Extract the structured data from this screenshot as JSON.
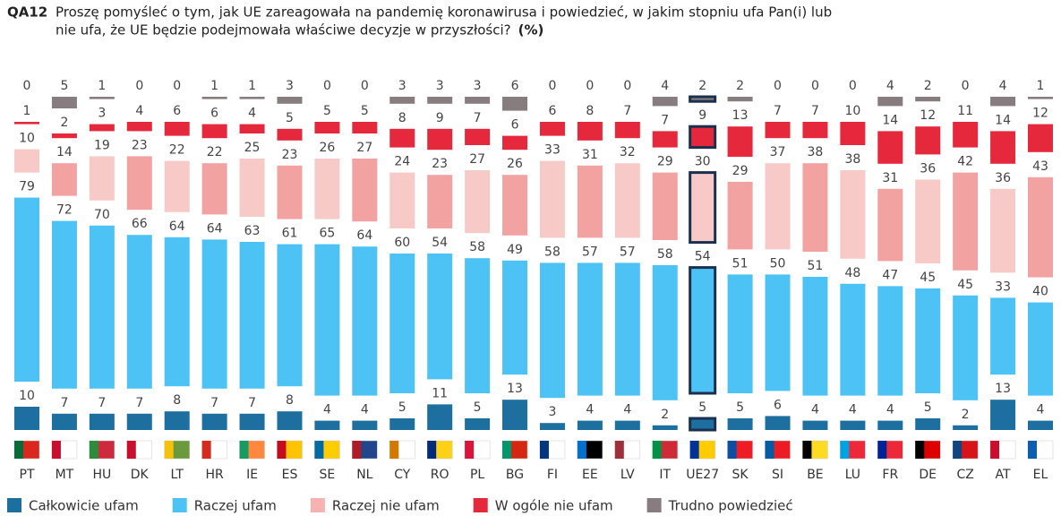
{
  "chart_data": {
    "type": "stacked_bar_gapped",
    "code": "QA12",
    "title": [
      "Proszę pomyśleć o tym, jak UE zareagowała na pandemię koronawirusa i powiedzieć, w jakim stopniu ufa Pan(i) lub",
      "nie ufa, że UE będzie podejmowała właściwe decyzje w przyszłości?"
    ],
    "unit": "(%)",
    "highlight": "UE27",
    "categories": [
      "PT",
      "MT",
      "HU",
      "DK",
      "LT",
      "HR",
      "IE",
      "ES",
      "SE",
      "NL",
      "CY",
      "RO",
      "PL",
      "BG",
      "FI",
      "EE",
      "LV",
      "IT",
      "UE27",
      "SK",
      "SI",
      "BE",
      "LU",
      "FR",
      "DE",
      "CZ",
      "AT",
      "EL"
    ],
    "series": [
      {
        "name": "Całkowicie ufam",
        "color": "#1c6f9f",
        "values": [
          10,
          7,
          7,
          7,
          8,
          7,
          7,
          8,
          4,
          4,
          5,
          11,
          5,
          13,
          3,
          4,
          4,
          2,
          5,
          5,
          6,
          4,
          4,
          4,
          5,
          2,
          13,
          4
        ]
      },
      {
        "name": "Raczej ufam",
        "color": "#4dc3f5",
        "values": [
          79,
          72,
          70,
          66,
          64,
          64,
          63,
          61,
          65,
          64,
          60,
          54,
          58,
          49,
          58,
          57,
          57,
          58,
          54,
          51,
          50,
          51,
          48,
          47,
          45,
          45,
          33,
          40
        ]
      },
      {
        "name": "Raczej nie ufam",
        "color": "#f5b3b1",
        "values": [
          10,
          14,
          19,
          23,
          22,
          22,
          25,
          23,
          26,
          27,
          24,
          23,
          27,
          26,
          33,
          31,
          32,
          29,
          30,
          29,
          37,
          38,
          38,
          31,
          36,
          42,
          36,
          43
        ]
      },
      {
        "name": "W ogóle nie ufam",
        "color": "#e5283c",
        "values": [
          1,
          2,
          3,
          4,
          6,
          6,
          4,
          5,
          5,
          5,
          8,
          9,
          7,
          6,
          6,
          8,
          7,
          7,
          9,
          13,
          7,
          7,
          10,
          14,
          12,
          11,
          14,
          12
        ]
      },
      {
        "name": "Trudno powiedzieć",
        "color": "#877d7e",
        "values": [
          0,
          5,
          1,
          0,
          0,
          1,
          1,
          3,
          0,
          0,
          3,
          3,
          3,
          6,
          0,
          0,
          0,
          4,
          2,
          2,
          0,
          0,
          0,
          4,
          2,
          0,
          4,
          1
        ]
      }
    ]
  }
}
